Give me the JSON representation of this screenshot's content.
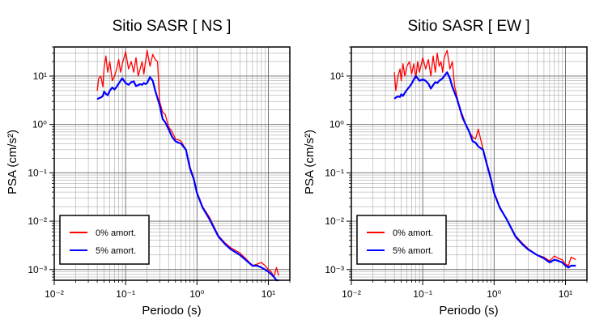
{
  "chart_data": [
    {
      "type": "line",
      "title": "Sitio SASR [ NS ]",
      "xlabel": "Periodo (s)",
      "ylabel": "PSA (cm/s²)",
      "xscale": "log",
      "yscale": "log",
      "xlim": [
        0.01,
        20
      ],
      "ylim": [
        0.0006,
        40
      ],
      "grid": true,
      "legend": "bottom-left",
      "x_tick_labels": [
        "10⁻²",
        "10⁻¹",
        "10⁰",
        "10¹"
      ],
      "y_tick_labels": [
        "10⁻³",
        "10⁻²",
        "10⁻¹",
        "10⁰",
        "10¹"
      ],
      "series": [
        {
          "name": "0% amort.",
          "color": "#ff0000",
          "x": [
            0.04,
            0.042,
            0.045,
            0.048,
            0.05,
            0.053,
            0.056,
            0.06,
            0.065,
            0.07,
            0.075,
            0.08,
            0.085,
            0.09,
            0.1,
            0.11,
            0.12,
            0.13,
            0.14,
            0.15,
            0.16,
            0.17,
            0.18,
            0.19,
            0.2,
            0.22,
            0.24,
            0.26,
            0.28,
            0.3,
            0.33,
            0.36,
            0.4,
            0.45,
            0.5,
            0.55,
            0.6,
            0.7,
            0.8,
            0.9,
            1.0,
            1.2,
            1.5,
            2.0,
            2.5,
            3.0,
            4.0,
            5.0,
            6.0,
            7.0,
            8.0,
            9.0,
            10.0,
            11.0,
            12.0,
            13.0,
            14.0
          ],
          "y": [
            5,
            9,
            10,
            6,
            15,
            26,
            12,
            20,
            8,
            10,
            14,
            22,
            12,
            18,
            32,
            14,
            20,
            12,
            24,
            10,
            14,
            20,
            11,
            20,
            34,
            16,
            28,
            22,
            20,
            3,
            1.8,
            1.6,
            0.9,
            0.7,
            0.5,
            0.48,
            0.45,
            0.3,
            0.13,
            0.08,
            0.04,
            0.02,
            0.012,
            0.005,
            0.0035,
            0.0028,
            0.0022,
            0.0016,
            0.0012,
            0.0013,
            0.0014,
            0.0012,
            0.001,
            0.0009,
            0.0007,
            0.0011,
            0.00075
          ]
        },
        {
          "name": "5% amort.",
          "color": "#0000ff",
          "x": [
            0.04,
            0.042,
            0.045,
            0.048,
            0.05,
            0.053,
            0.056,
            0.06,
            0.065,
            0.07,
            0.075,
            0.08,
            0.085,
            0.09,
            0.1,
            0.11,
            0.12,
            0.13,
            0.14,
            0.15,
            0.16,
            0.17,
            0.18,
            0.19,
            0.2,
            0.22,
            0.24,
            0.26,
            0.28,
            0.3,
            0.33,
            0.36,
            0.4,
            0.45,
            0.5,
            0.55,
            0.6,
            0.7,
            0.8,
            0.9,
            1.0,
            1.2,
            1.5,
            2.0,
            2.5,
            3.0,
            4.0,
            5.0,
            6.0,
            7.0,
            8.0,
            9.0,
            10.0,
            11.0,
            12.0,
            13.0,
            14.0
          ],
          "y": [
            3.3,
            3.5,
            3.6,
            3.9,
            4.8,
            4.3,
            4,
            5,
            5.8,
            5.3,
            6,
            7,
            8,
            9,
            7.2,
            6.6,
            7.5,
            7.8,
            6.2,
            6.5,
            6.8,
            6.6,
            7.2,
            6.8,
            7.2,
            9.5,
            8,
            5,
            3.5,
            2.5,
            1.3,
            1.1,
            0.8,
            0.55,
            0.45,
            0.42,
            0.4,
            0.3,
            0.12,
            0.075,
            0.038,
            0.019,
            0.011,
            0.0048,
            0.0033,
            0.0026,
            0.002,
            0.0015,
            0.0012,
            0.0012,
            0.0011,
            0.001,
            0.0009,
            0.0008,
            0.0007,
            0.0006,
            0.0006
          ]
        }
      ]
    },
    {
      "type": "line",
      "title": "Sitio SASR [ EW ]",
      "xlabel": "Periodo (s)",
      "ylabel": "PSA (cm/s²)",
      "xscale": "log",
      "yscale": "log",
      "xlim": [
        0.01,
        20
      ],
      "ylim": [
        0.0006,
        40
      ],
      "grid": true,
      "legend": "bottom-left",
      "x_tick_labels": [
        "10⁻²",
        "10⁻¹",
        "10⁰",
        "10¹"
      ],
      "y_tick_labels": [
        "10⁻³",
        "10⁻²",
        "10⁻¹",
        "10⁰",
        "10¹"
      ],
      "series": [
        {
          "name": "0% amort.",
          "color": "#ff0000",
          "x": [
            0.04,
            0.042,
            0.045,
            0.048,
            0.05,
            0.053,
            0.056,
            0.06,
            0.065,
            0.07,
            0.075,
            0.08,
            0.085,
            0.09,
            0.1,
            0.11,
            0.12,
            0.13,
            0.14,
            0.15,
            0.16,
            0.17,
            0.18,
            0.19,
            0.2,
            0.22,
            0.24,
            0.26,
            0.28,
            0.3,
            0.33,
            0.36,
            0.4,
            0.45,
            0.5,
            0.55,
            0.6,
            0.7,
            0.8,
            0.9,
            1.0,
            1.2,
            1.5,
            2.0,
            2.5,
            3.0,
            4.0,
            5.0,
            6.0,
            7.0,
            8.0,
            9.0,
            10.0,
            11.0,
            12.0,
            13.0,
            14.0
          ],
          "y": [
            12,
            5,
            10,
            14,
            8,
            18,
            10,
            16,
            20,
            11,
            18,
            9,
            20,
            12,
            24,
            14,
            22,
            10,
            26,
            12,
            30,
            16,
            20,
            12,
            24,
            34,
            14,
            20,
            6,
            4,
            2,
            1.6,
            1.0,
            0.7,
            0.55,
            0.5,
            0.8,
            0.3,
            0.15,
            0.08,
            0.04,
            0.02,
            0.011,
            0.005,
            0.0035,
            0.0027,
            0.002,
            0.0018,
            0.0015,
            0.0019,
            0.0017,
            0.0016,
            0.0013,
            0.0012,
            0.0018,
            0.0017,
            0.0016
          ]
        },
        {
          "name": "5% amort.",
          "color": "#0000ff",
          "x": [
            0.04,
            0.042,
            0.045,
            0.048,
            0.05,
            0.053,
            0.056,
            0.06,
            0.065,
            0.07,
            0.075,
            0.08,
            0.085,
            0.09,
            0.1,
            0.11,
            0.12,
            0.13,
            0.14,
            0.15,
            0.16,
            0.17,
            0.18,
            0.19,
            0.2,
            0.22,
            0.24,
            0.26,
            0.28,
            0.3,
            0.33,
            0.36,
            0.4,
            0.45,
            0.5,
            0.55,
            0.6,
            0.7,
            0.8,
            0.9,
            1.0,
            1.2,
            1.5,
            2.0,
            2.5,
            3.0,
            4.0,
            5.0,
            6.0,
            7.0,
            8.0,
            9.0,
            10.0,
            11.0,
            12.0,
            13.0,
            14.0
          ],
          "y": [
            3.4,
            3.6,
            3.8,
            3.7,
            4.2,
            3.9,
            4.5,
            5.2,
            6,
            7,
            8.5,
            10,
            9,
            8,
            8.5,
            8,
            7,
            5.5,
            6.5,
            7.5,
            7.2,
            8,
            8.5,
            9,
            10,
            12,
            9,
            6,
            4.5,
            3.5,
            2.2,
            1.4,
            1,
            0.7,
            0.45,
            0.42,
            0.35,
            0.3,
            0.14,
            0.075,
            0.038,
            0.019,
            0.011,
            0.0048,
            0.0033,
            0.0026,
            0.002,
            0.0017,
            0.0014,
            0.0016,
            0.0015,
            0.0014,
            0.0012,
            0.0011,
            0.0012,
            0.0012,
            0.0012
          ]
        }
      ]
    }
  ]
}
